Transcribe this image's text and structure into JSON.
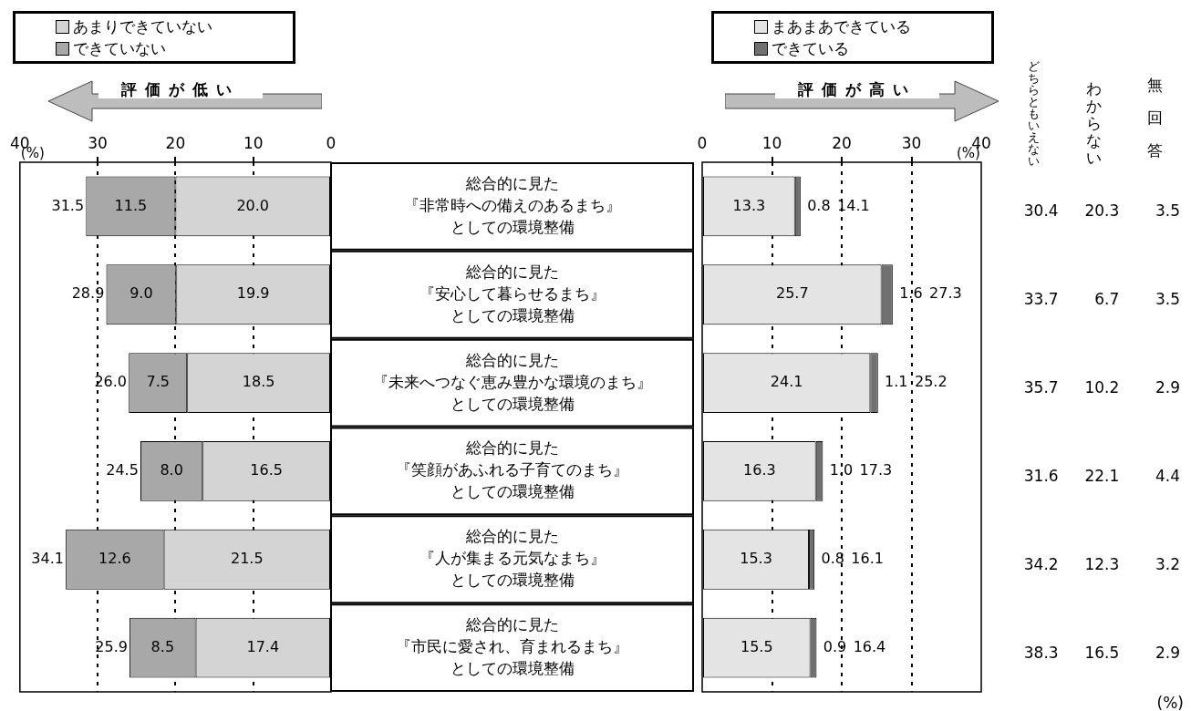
{
  "chart_data": [
    {
      "type": "bar",
      "orientation": "horizontal",
      "stacked": true,
      "xlim": [
        40,
        0
      ],
      "xticks": [
        40,
        30,
        20,
        10,
        0
      ],
      "xlabel": "(%)",
      "grid": "x",
      "legend": "top left",
      "annotations": [
        "評価が低い"
      ],
      "categories": [
        "総合的に見た『非常時への備えのあるまち』としての環境整備",
        "総合的に見た『安心して暮らせるまち』としての環境整備",
        "総合的に見た『未来へつなぐ恵み豊かな環境のまち』としての環境整備",
        "総合的に見た『笑顔があふれる子育てのまち』としての環境整備",
        "総合的に見た『人が集まる元気なまち』としての環境整備",
        "総合的に見た『市民に愛され、育まれるまち』としての環境整備"
      ],
      "series": [
        {
          "name": "あまりできていない",
          "color": "#d4d4d4",
          "values": [
            20.0,
            19.9,
            18.5,
            16.5,
            21.5,
            17.4
          ],
          "value_labels": [
            "20.0",
            "19.9",
            "18.5",
            "16.5",
            "21.5",
            "17.4"
          ]
        },
        {
          "name": "できていない",
          "color": "#a8a8a8",
          "values": [
            11.5,
            9.0,
            7.5,
            8.0,
            12.6,
            8.5
          ],
          "value_labels": [
            "11.5",
            "9.0",
            "7.5",
            "8.0",
            "12.6",
            "8.5"
          ]
        }
      ],
      "totals": [
        "31.5",
        "28.9",
        "26.0",
        "24.5",
        "34.1",
        "25.9"
      ]
    },
    {
      "type": "bar",
      "orientation": "horizontal",
      "stacked": true,
      "xlim": [
        0,
        40
      ],
      "xticks": [
        0,
        10,
        20,
        30,
        40
      ],
      "xlabel": "(%)",
      "grid": "x",
      "legend": "top left",
      "annotations": [
        "評価が高い"
      ],
      "categories": [
        null,
        null,
        null,
        null,
        null,
        null
      ],
      "series": [
        {
          "name": "まあまあできている",
          "color": "#e4e4e4",
          "values": [
            13.3,
            25.7,
            24.1,
            16.3,
            15.3,
            15.5
          ],
          "value_labels": [
            "13.3",
            "25.7",
            "24.1",
            "16.3",
            "15.3",
            "15.5"
          ]
        },
        {
          "name": "できている",
          "color": "#707070",
          "values": [
            0.8,
            1.6,
            1.1,
            1.0,
            0.8,
            0.9
          ],
          "value_labels": [
            "0.8",
            "1.6",
            "1.1",
            "1.0",
            "0.8",
            "0.9"
          ]
        }
      ],
      "totals": [
        "14.1",
        "27.3",
        "25.2",
        "17.3",
        "16.1",
        "16.4"
      ]
    },
    {
      "type": "heatmap",
      "data_labels": true,
      "annotations": [
        "(%)"
      ],
      "categories": [
        "どちらともいえない",
        "わからない",
        "無回答"
      ],
      "y_categories": [
        null,
        null,
        null,
        null,
        null,
        null
      ],
      "cells": [
        [
          30.4,
          20.3,
          3.5
        ],
        [
          33.7,
          6.7,
          3.5
        ],
        [
          35.7,
          10.2,
          2.9
        ],
        [
          31.6,
          22.1,
          4.4
        ],
        [
          34.2,
          12.3,
          3.2
        ],
        [
          38.3,
          16.5,
          2.9
        ]
      ]
    }
  ]
}
